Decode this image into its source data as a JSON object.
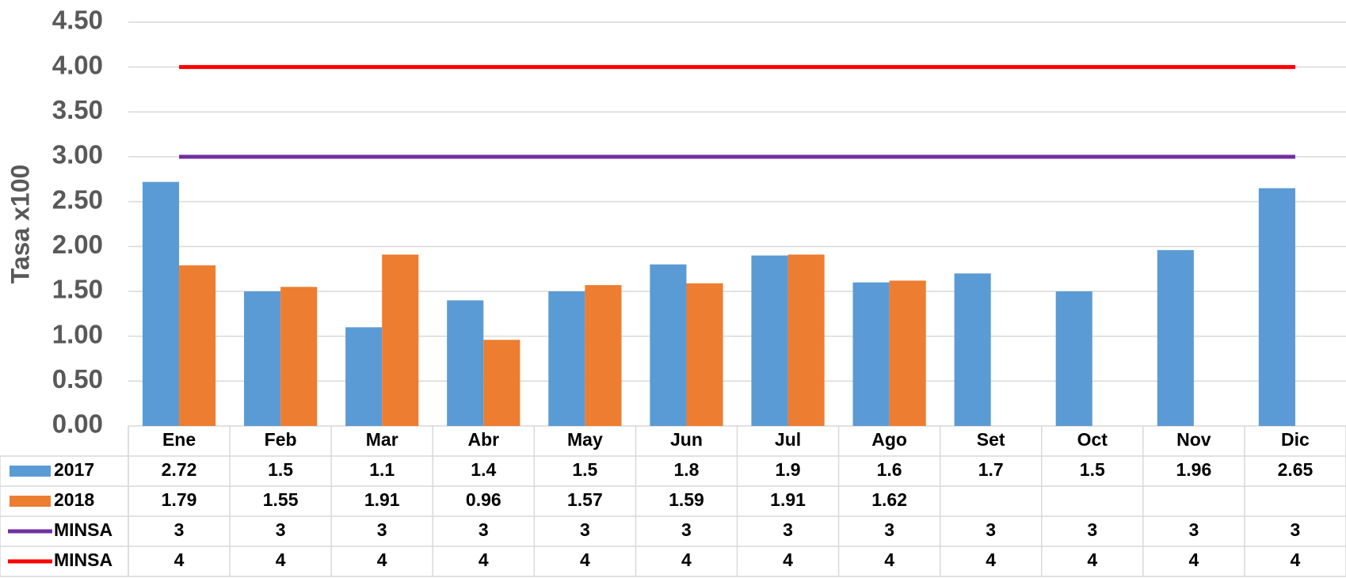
{
  "chart_data": {
    "type": "bar",
    "y_label": "Tasa x100",
    "categories": [
      "Ene",
      "Feb",
      "Mar",
      "Abr",
      "May",
      "Jun",
      "Jul",
      "Ago",
      "Set",
      "Oct",
      "Nov",
      "Dic"
    ],
    "series": [
      {
        "name": "2017",
        "type": "bar",
        "color": "#5b9bd5",
        "values": [
          2.72,
          1.5,
          1.1,
          1.4,
          1.5,
          1.8,
          1.9,
          1.6,
          1.7,
          1.5,
          1.96,
          2.65
        ]
      },
      {
        "name": "2018",
        "type": "bar",
        "color": "#ed7d31",
        "values": [
          1.79,
          1.55,
          1.91,
          0.96,
          1.57,
          1.59,
          1.91,
          1.62,
          null,
          null,
          null,
          null
        ]
      },
      {
        "name": "MINSA",
        "type": "line",
        "color": "#7030a0",
        "values": [
          3,
          3,
          3,
          3,
          3,
          3,
          3,
          3,
          3,
          3,
          3,
          3
        ]
      },
      {
        "name": "MINSA",
        "type": "line",
        "color": "#ff0000",
        "values": [
          4,
          4,
          4,
          4,
          4,
          4,
          4,
          4,
          4,
          4,
          4,
          4
        ]
      }
    ],
    "ylim": [
      0,
      4.5
    ],
    "yticks": [
      {
        "value": 0,
        "label": "0.00"
      },
      {
        "value": 0.5,
        "label": "0.50"
      },
      {
        "value": 1,
        "label": "1.00"
      },
      {
        "value": 1.5,
        "label": "1.50"
      },
      {
        "value": 2,
        "label": "2.00"
      },
      {
        "value": 2.5,
        "label": "2.50"
      },
      {
        "value": 3,
        "label": "3.00"
      },
      {
        "value": 3.5,
        "label": "3.50"
      },
      {
        "value": 4,
        "label": "4.00"
      },
      {
        "value": 4.5,
        "label": "4.50"
      }
    ],
    "grid": true
  }
}
